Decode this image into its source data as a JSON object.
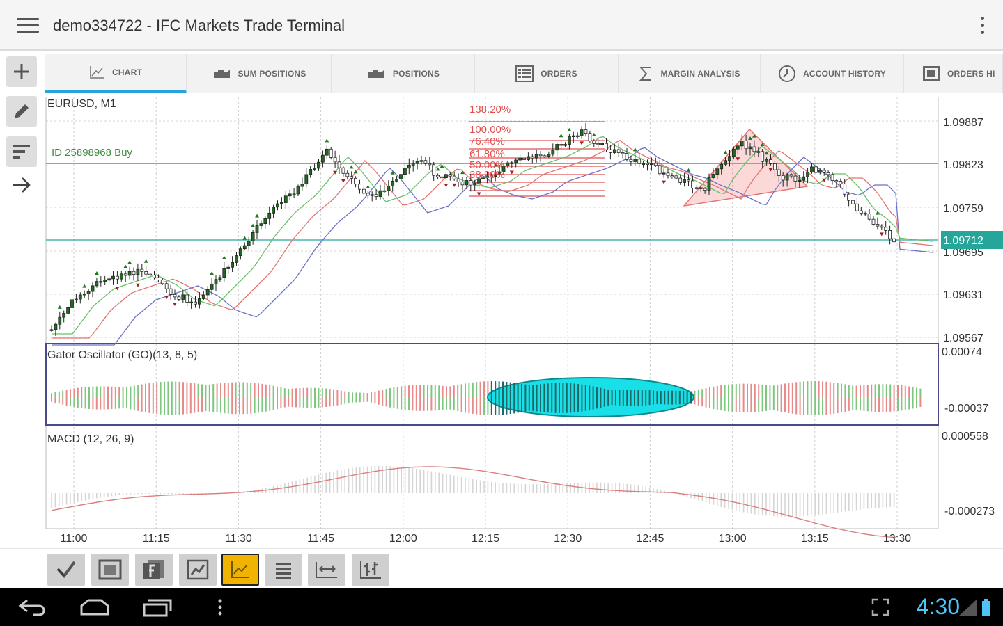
{
  "app": {
    "title": "demo334722 - IFC Markets Trade Terminal"
  },
  "tabs": [
    {
      "label": "CHART",
      "icon": "line-chart-icon",
      "active": true
    },
    {
      "label": "SUM POSITIONS",
      "icon": "briefcase-icon",
      "active": false
    },
    {
      "label": "POSITIONS",
      "icon": "briefcase-icon",
      "active": false
    },
    {
      "label": "ORDERS",
      "icon": "list-icon",
      "active": false
    },
    {
      "label": "MARGIN ANALYSIS",
      "icon": "sigma-icon",
      "active": false
    },
    {
      "label": "ACCOUNT HISTORY",
      "icon": "clock-icon",
      "active": false
    },
    {
      "label": "ORDERS HI",
      "icon": "grid-icon",
      "active": false
    }
  ],
  "left_tools": [
    {
      "name": "add-tool",
      "icon": "plus-icon"
    },
    {
      "name": "draw-tool",
      "icon": "pencil-icon"
    },
    {
      "name": "indicator-tool",
      "icon": "bars-icon"
    },
    {
      "name": "navigate-tool",
      "icon": "arrow-right-icon"
    }
  ],
  "chart": {
    "symbol": "EURUSD, M1",
    "position_label": "ID 25898968 Buy",
    "price_labels": [
      "1.09887",
      "1.09823",
      "1.09759",
      "1.09695",
      "1.09631",
      "1.09567"
    ],
    "current_price": "1.09712",
    "fib_levels": [
      "138.20%",
      "100.00%",
      "76.40%",
      "61.80%",
      "50.00%",
      "38.20%"
    ],
    "gator_label": "Gator Oscillator (GO)(13, 8, 5)",
    "gator_scale": [
      "0.00074",
      "-0.00037"
    ],
    "macd_label": "MACD (12, 26, 9)",
    "macd_scale": [
      "0.000558",
      "-0.000273"
    ],
    "time_labels": [
      "11:00",
      "11:15",
      "11:30",
      "11:45",
      "12:00",
      "12:15",
      "12:30",
      "12:45",
      "13:00",
      "13:15",
      "13:30"
    ],
    "colors": {
      "bull": "#1f6b1f",
      "ma_red": "#e57373",
      "ma_green": "#66bb6a",
      "ma_blue": "#5c6bc0",
      "accent": "#29a3e0",
      "price_tag": "#26a69a",
      "ellipse": "#19e0e8"
    }
  },
  "bottom_tools": [
    {
      "name": "checkmark-tool",
      "icon": "check-icon"
    },
    {
      "name": "screenshot-tool",
      "icon": "frame-icon"
    },
    {
      "name": "function-tool",
      "icon": "fx-icon"
    },
    {
      "name": "chart-type-tool",
      "icon": "chart-box-icon"
    },
    {
      "name": "line-chart-tool",
      "icon": "line-chart-icon",
      "active": true
    },
    {
      "name": "list-tool",
      "icon": "list-icon"
    },
    {
      "name": "scale-tool",
      "icon": "width-icon"
    },
    {
      "name": "bars-tool",
      "icon": "ohlc-icon"
    }
  ],
  "status": {
    "clock": "4:30"
  }
}
